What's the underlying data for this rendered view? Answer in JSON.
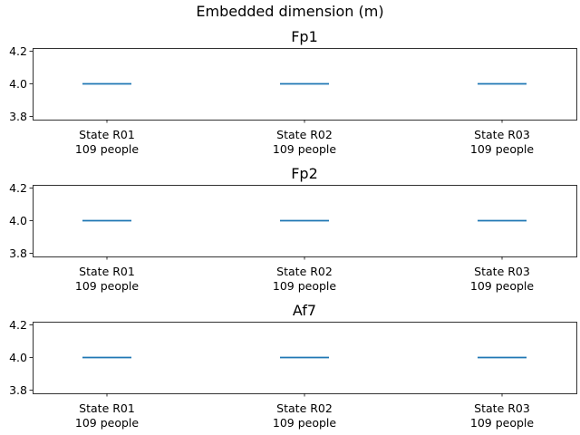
{
  "figure": {
    "suptitle": "Embedded dimension (m)"
  },
  "chart_data": [
    {
      "type": "box",
      "title": "Fp1",
      "categories": [
        "State R01\n109 people",
        "State R02\n109 people",
        "State R03\n109 people"
      ],
      "medians": [
        4.0,
        4.0,
        4.0
      ],
      "ylim": [
        3.78,
        4.22
      ],
      "yticks": [
        3.8,
        4.0,
        4.2
      ],
      "ytick_labels": [
        "3.8",
        "4.0",
        "4.2"
      ],
      "grid": false,
      "color": "#1f77b4"
    },
    {
      "type": "box",
      "title": "Fp2",
      "categories": [
        "State R01\n109 people",
        "State R02\n109 people",
        "State R03\n109 people"
      ],
      "medians": [
        4.0,
        4.0,
        4.0
      ],
      "ylim": [
        3.78,
        4.22
      ],
      "yticks": [
        3.8,
        4.0,
        4.2
      ],
      "ytick_labels": [
        "3.8",
        "4.0",
        "4.2"
      ],
      "grid": false,
      "color": "#1f77b4"
    },
    {
      "type": "box",
      "title": "Af7",
      "categories": [
        "State R01\n109 people",
        "State R02\n109 people",
        "State R03\n109 people"
      ],
      "medians": [
        4.0,
        4.0,
        4.0
      ],
      "ylim": [
        3.78,
        4.22
      ],
      "yticks": [
        3.8,
        4.0,
        4.2
      ],
      "ytick_labels": [
        "3.8",
        "4.0",
        "4.2"
      ],
      "grid": false,
      "color": "#1f77b4"
    }
  ]
}
